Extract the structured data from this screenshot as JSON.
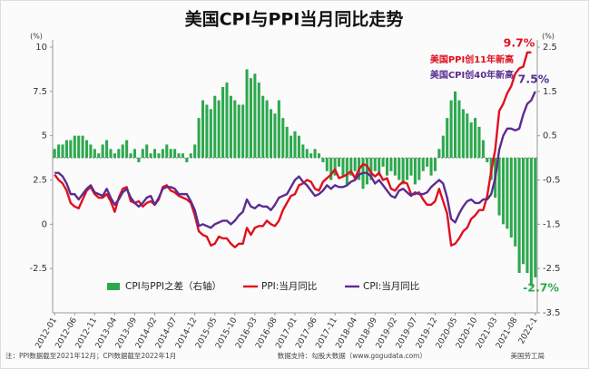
{
  "chart_data": {
    "type": "combo",
    "title": "美国CPI与PPI当月同比走势",
    "y_unit": "(%)",
    "y2_unit": "(%)",
    "categories": [
      "2012-01",
      null,
      null,
      null,
      null,
      "2012-06",
      null,
      null,
      null,
      null,
      "2012-11",
      null,
      null,
      null,
      null,
      "2013-04",
      null,
      null,
      null,
      null,
      "2013-09",
      null,
      null,
      null,
      null,
      "2014-02",
      null,
      null,
      null,
      null,
      "2014-07",
      null,
      null,
      null,
      null,
      "2014-12",
      null,
      null,
      null,
      null,
      "2015-05",
      null,
      null,
      null,
      null,
      "2015-10",
      null,
      null,
      null,
      null,
      "2016-03",
      null,
      null,
      null,
      null,
      "2016-08",
      null,
      null,
      null,
      null,
      "2017-01",
      null,
      null,
      null,
      null,
      "2017-06",
      null,
      null,
      null,
      null,
      "2017-11",
      null,
      null,
      null,
      null,
      "2018-04",
      null,
      null,
      null,
      null,
      "2018-09",
      null,
      null,
      null,
      null,
      "2019-02",
      null,
      null,
      null,
      null,
      "2019-07",
      null,
      null,
      null,
      null,
      "2019-12",
      null,
      null,
      null,
      null,
      "2020-05",
      null,
      null,
      null,
      null,
      "2020-10",
      null,
      null,
      null,
      null,
      "2021-03",
      null,
      null,
      null,
      null,
      "2021-08",
      null,
      null,
      null,
      null,
      "2022-1"
    ],
    "ylim": [
      -5,
      10
    ],
    "yticks": [
      -2.5,
      0,
      2.5,
      5,
      7.5,
      10
    ],
    "y2lim": [
      -3.5,
      2.5
    ],
    "y2ticks": [
      -3.5,
      -2.5,
      -1.5,
      -0.5,
      0.5,
      1.5,
      2.5
    ],
    "series": [
      {
        "name": "CPI与PPI之差（右轴）",
        "type": "bar",
        "axis": "y2",
        "color": "#2ea84f",
        "values": [
          0.2,
          0.3,
          0.3,
          0.4,
          0.4,
          0.5,
          0.5,
          0.5,
          0.4,
          0.3,
          0.2,
          0.1,
          0.3,
          0.4,
          0.2,
          0.1,
          0.2,
          0.3,
          0.4,
          0.1,
          0.2,
          -0.1,
          0.2,
          0.3,
          0.1,
          0.2,
          0.1,
          0.2,
          0.3,
          0.2,
          0.2,
          0.1,
          0.1,
          -0.1,
          0.1,
          0.3,
          0.9,
          1.3,
          1.2,
          1.1,
          1.4,
          1.3,
          1.6,
          1.7,
          1.4,
          1.3,
          1.2,
          1.2,
          2.0,
          1.8,
          1.9,
          1.7,
          1.4,
          1.3,
          1.1,
          1.0,
          1.3,
          0.9,
          0.7,
          0.5,
          0.6,
          0.5,
          0.3,
          0.2,
          0.1,
          0.2,
          0.1,
          -0.1,
          -0.3,
          -0.5,
          -0.4,
          -0.2,
          -0.4,
          -0.6,
          -0.4,
          -0.3,
          -0.5,
          -0.7,
          -0.6,
          -0.5,
          -0.3,
          -0.4,
          -0.2,
          -0.4,
          -0.3,
          -0.4,
          -0.5,
          -0.6,
          -0.5,
          -0.4,
          -0.6,
          -0.5,
          -0.3,
          -0.2,
          -0.4,
          -0.3,
          0.2,
          0.5,
          0.9,
          1.3,
          1.5,
          1.3,
          1.1,
          1.0,
          0.8,
          0.9,
          0.7,
          0.4,
          -0.1,
          -0.5,
          -0.9,
          -1.3,
          -1.5,
          -1.6,
          -1.8,
          -2.0,
          -2.6,
          -2.4,
          -2.6,
          -2.9,
          -2.7
        ]
      },
      {
        "name": "PPI:当月同比",
        "type": "line",
        "color": "#e0101e",
        "values": [
          2.8,
          2.5,
          2.3,
          1.9,
          1.2,
          1.0,
          0.9,
          1.4,
          1.9,
          2.1,
          1.7,
          1.5,
          1.5,
          1.7,
          1.3,
          0.7,
          1.5,
          2.0,
          2.1,
          1.3,
          1.2,
          1.3,
          1.0,
          1.2,
          1.3,
          1.1,
          1.4,
          2.1,
          2.2,
          1.9,
          1.8,
          1.6,
          1.5,
          1.4,
          1.2,
          0.5,
          -0.4,
          -0.6,
          -0.7,
          -1.2,
          -1.1,
          -0.7,
          -0.8,
          -0.8,
          -1.1,
          -1.3,
          -1.1,
          -1.1,
          -0.2,
          -0.6,
          -0.2,
          -0.1,
          -0.1,
          0.2,
          0.0,
          -0.1,
          0.2,
          0.8,
          1.2,
          1.6,
          1.7,
          2.2,
          2.3,
          2.5,
          2.4,
          2.0,
          1.9,
          2.4,
          2.6,
          2.8,
          3.1,
          2.6,
          2.7,
          2.8,
          3.0,
          2.6,
          3.1,
          3.4,
          3.3,
          2.9,
          2.7,
          2.9,
          2.5,
          2.6,
          2.0,
          1.9,
          2.2,
          2.4,
          2.3,
          1.7,
          1.7,
          1.8,
          1.4,
          1.1,
          1.1,
          1.3,
          2.0,
          1.3,
          0.6,
          -1.2,
          -1.1,
          -0.8,
          -0.4,
          -0.2,
          0.3,
          0.5,
          0.8,
          0.8,
          1.6,
          3.0,
          4.2,
          6.4,
          6.8,
          7.4,
          7.8,
          8.5,
          8.8,
          8.9,
          9.7,
          9.7,
          null
        ]
      },
      {
        "name": "CPI:当月同比",
        "type": "line",
        "color": "#5b2c91",
        "values": [
          2.9,
          2.9,
          2.7,
          2.3,
          1.7,
          1.7,
          1.4,
          1.7,
          2.0,
          2.2,
          1.8,
          1.7,
          1.6,
          2.0,
          1.5,
          1.1,
          1.4,
          1.8,
          2.0,
          1.5,
          1.2,
          1.0,
          1.2,
          1.5,
          1.6,
          1.1,
          1.5,
          2.0,
          2.1,
          2.1,
          2.0,
          1.7,
          1.7,
          1.7,
          1.3,
          0.8,
          -0.1,
          0.0,
          -0.1,
          -0.2,
          0.0,
          0.1,
          0.2,
          0.2,
          0.0,
          0.2,
          0.5,
          0.7,
          1.4,
          1.0,
          0.9,
          1.1,
          1.0,
          1.0,
          0.8,
          1.1,
          1.5,
          1.6,
          1.7,
          2.1,
          2.5,
          2.7,
          2.4,
          2.2,
          1.9,
          1.6,
          1.7,
          1.9,
          2.2,
          2.0,
          2.2,
          2.1,
          2.1,
          2.2,
          2.4,
          2.5,
          2.8,
          2.9,
          2.9,
          2.7,
          2.3,
          2.5,
          2.2,
          1.9,
          1.6,
          1.5,
          1.9,
          2.0,
          1.8,
          1.6,
          1.8,
          1.7,
          1.7,
          1.8,
          2.1,
          2.3,
          2.5,
          2.3,
          1.5,
          0.3,
          0.1,
          0.6,
          1.0,
          1.3,
          1.4,
          1.2,
          1.2,
          1.4,
          1.4,
          1.7,
          2.6,
          4.2,
          5.0,
          5.4,
          5.4,
          5.3,
          5.4,
          6.2,
          6.8,
          7.0,
          7.5
        ]
      }
    ],
    "annotations": [
      {
        "text": "9.7%",
        "color": "#e0101e"
      },
      {
        "text": "美国PPI创11年新高",
        "color": "#e0101e"
      },
      {
        "text": "美国CPI创40年新高",
        "color": "#5b2c91"
      },
      {
        "text": "7.5%",
        "color": "#5b2c91"
      },
      {
        "text": "-2.7%",
        "color": "#2ea84f"
      }
    ],
    "note": "注：PPI数据截至2021年12月；CPI数据截至2022年1月",
    "source": "数据支持：勾股大数据（www.gogudata.com）",
    "source_org": "美国劳工局"
  }
}
